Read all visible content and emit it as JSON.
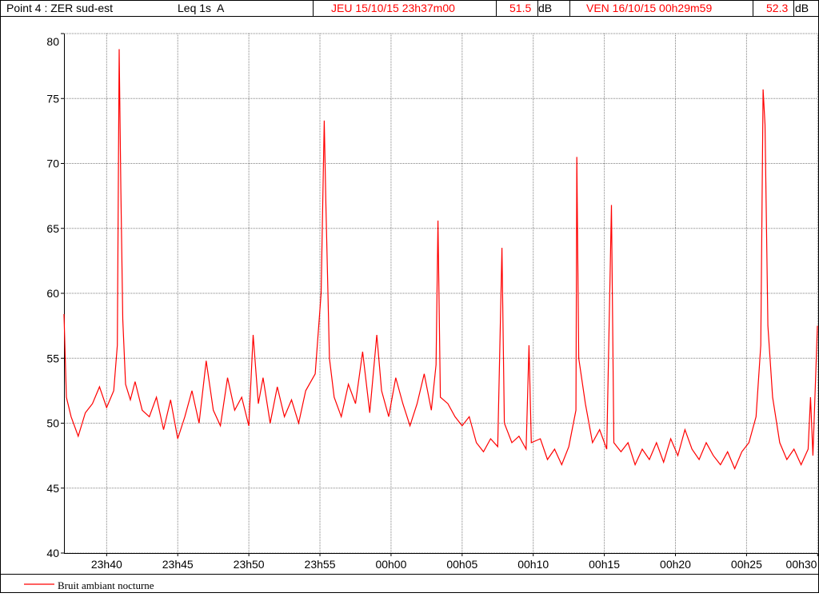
{
  "header": {
    "point": "Point 4 : ZER sud-est",
    "index": "Leq 1s  A",
    "start": "JEU 15/10/15 23h37m00",
    "start_value": "51.5",
    "start_unit": "dB",
    "end": "VEN 16/10/15 00h29m59",
    "end_value": "52.3",
    "end_unit": "dB"
  },
  "chart_data": {
    "type": "line",
    "x": [
      "23h37m00",
      "23h37m10",
      "23h37m30",
      "23h38m00",
      "23h38m30",
      "23h39m00",
      "23h39m30",
      "23h40m00",
      "23h40m30",
      "23h40m45",
      "23h40m53",
      "23h41m00",
      "23h41m08",
      "23h41m20",
      "23h41m40",
      "23h42m00",
      "23h42m30",
      "23h43m00",
      "23h43m30",
      "23h44m00",
      "23h44m30",
      "23h45m00",
      "23h45m30",
      "23h46m00",
      "23h46m30",
      "23h47m00",
      "23h47m30",
      "23h48m00",
      "23h48m30",
      "23h49m00",
      "23h49m30",
      "23h50m00",
      "23h50m18",
      "23h50m40",
      "23h51m00",
      "23h51m30",
      "23h52m00",
      "23h52m30",
      "23h53m00",
      "23h53m30",
      "23h54m00",
      "23h54m40",
      "23h55m05",
      "23h55m18",
      "23h55m25",
      "23h55m40",
      "23h56m00",
      "23h56m30",
      "23h57m00",
      "23h57m30",
      "23h58m00",
      "23h58m30",
      "23h59m00",
      "23h59m20",
      "23h59m50",
      "00h00m20",
      "00h00m50",
      "00h01m20",
      "00h01m50",
      "00h02m20",
      "00h02m50",
      "00h03m10",
      "00h03m18",
      "00h03m28",
      "00h04m00",
      "00h04m30",
      "00h05m00",
      "00h05m30",
      "00h06m00",
      "00h06m30",
      "00h07m00",
      "00h07m30",
      "00h07m48",
      "00h07m58",
      "00h08m30",
      "00h09m00",
      "00h09m30",
      "00h09m42",
      "00h09m52",
      "00h10m30",
      "00h11m00",
      "00h11m30",
      "00h12m00",
      "00h12m30",
      "00h13m00",
      "00h13m04",
      "00h13m12",
      "00h13m40",
      "00h14m10",
      "00h14m40",
      "00h15m10",
      "00h15m30",
      "00h15m40",
      "00h16m10",
      "00h16m40",
      "00h17m10",
      "00h17m40",
      "00h18m10",
      "00h18m40",
      "00h19m10",
      "00h19m40",
      "00h20m10",
      "00h20m40",
      "00h21m10",
      "00h21m40",
      "00h22m10",
      "00h22m40",
      "00h23m10",
      "00h23m40",
      "00h24m10",
      "00h24m40",
      "00h25m10",
      "00h25m40",
      "00h26m00",
      "00h26m10",
      "00h26m18",
      "00h26m30",
      "00h26m50",
      "00h27m20",
      "00h27m50",
      "00h28m20",
      "00h28m50",
      "00h29m20",
      "00h29m30",
      "00h29m40",
      "00h29m59"
    ],
    "series": [
      {
        "name": "Bruit ambiant nocturne",
        "color": "#ff0000",
        "values": [
          58.4,
          52,
          50.5,
          49,
          50.8,
          51.5,
          52.8,
          51.2,
          52.5,
          56,
          78.8,
          68,
          58,
          53,
          51.8,
          53.2,
          51,
          50.5,
          52,
          49.5,
          51.8,
          48.8,
          50.5,
          52.5,
          50,
          54.8,
          51,
          49.8,
          53.5,
          51,
          52,
          49.8,
          56.8,
          51.5,
          53.5,
          50,
          52.8,
          50.5,
          51.8,
          50,
          52.5,
          53.8,
          60,
          73.3,
          67,
          55,
          52,
          50.5,
          53,
          51.5,
          55.5,
          50.8,
          56.8,
          52.5,
          50.5,
          53.5,
          51.5,
          49.8,
          51.5,
          53.8,
          51,
          54.5,
          65.6,
          52,
          51.5,
          50.5,
          49.8,
          50.5,
          48.5,
          47.8,
          48.8,
          48.2,
          63.5,
          50,
          48.5,
          49,
          48,
          56,
          48.5,
          48.8,
          47.2,
          48,
          46.8,
          48.2,
          51,
          70.5,
          55,
          51.5,
          48.5,
          49.5,
          48,
          66.8,
          48.5,
          47.8,
          48.5,
          46.8,
          48,
          47.2,
          48.5,
          47,
          48.8,
          47.5,
          49.5,
          48,
          47.2,
          48.5,
          47.5,
          46.8,
          47.8,
          46.5,
          47.8,
          48.5,
          50.5,
          56,
          75.7,
          73,
          57.5,
          52,
          48.5,
          47.2,
          48,
          46.8,
          48,
          52,
          47.5,
          57.5
        ]
      }
    ],
    "xlim": [
      "23h37m00",
      "00h29m59"
    ],
    "xticks": [
      "23h40",
      "23h45",
      "23h50",
      "23h55",
      "00h00",
      "00h05",
      "00h10",
      "00h15",
      "00h20",
      "00h25",
      "00h30"
    ],
    "ylim": [
      40,
      80
    ],
    "yticks": [
      40,
      45,
      50,
      55,
      60,
      65,
      70,
      75,
      80
    ],
    "grid": true
  }
}
